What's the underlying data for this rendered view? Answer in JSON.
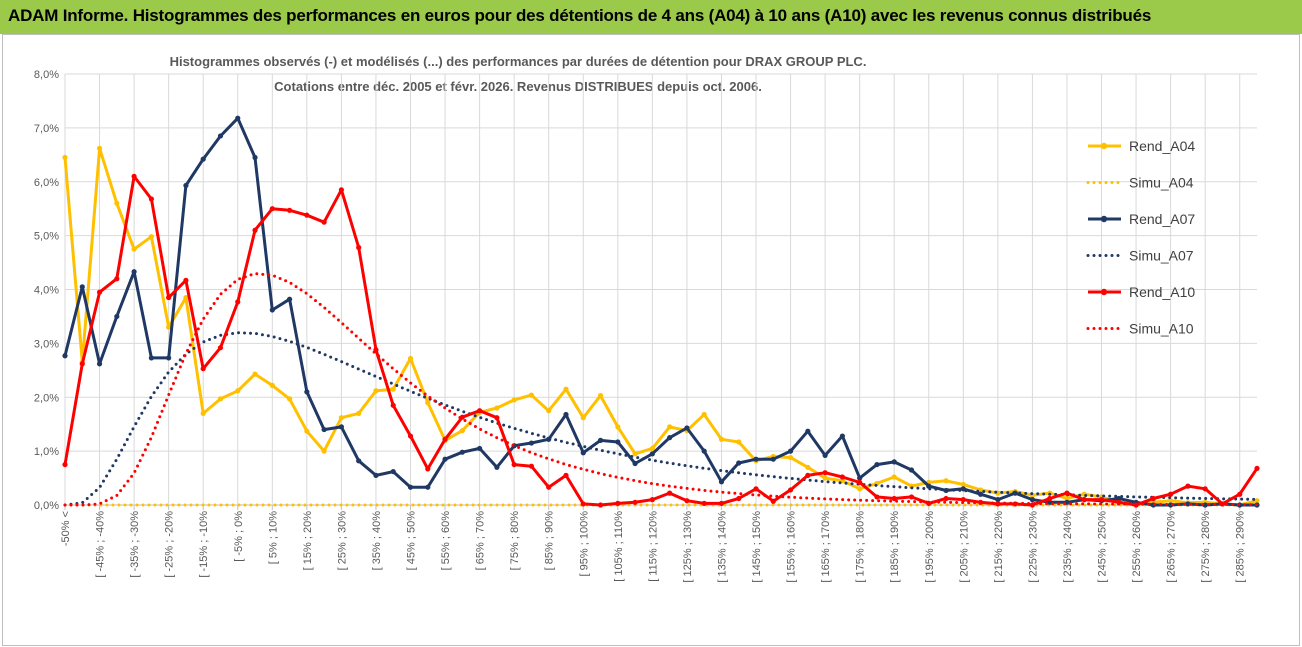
{
  "banner": {
    "title": "ADAM Informe. Histogrammes des performances en euros pour des détentions de 4 ans (A04) à 10 ans (A10) avec les revenus connus distribués"
  },
  "colors": {
    "banner_bg": "#9BC94A",
    "A04": "#FFC000",
    "A07": "#1F3864",
    "A10": "#FF0000",
    "grid": "#d9d9d9",
    "text": "#595959"
  },
  "chart_data": {
    "type": "line",
    "title": "Histogrammes observés (-)  et modélisés (...) des performances par durées de détention pour DRAX GROUP PLC.",
    "subtitle": "Cotations entre déc. 2005 et févr. 2026. Revenus DISTRIBUES depuis oct. 2006.",
    "xlabel": "",
    "ylabel": "",
    "ylim": [
      0,
      8
    ],
    "y_ticks": [
      "0,0%",
      "1,0%",
      "2,0%",
      "3,0%",
      "4,0%",
      "5,0%",
      "6,0%",
      "7,0%",
      "8,0%"
    ],
    "x_tick_labels": [
      "-50% <",
      "[ -45% ; -40%",
      "[ -35% ; -30%",
      "[ -25% ; -20%",
      "[ -15% ; -10%",
      "[ -5% ; 0%",
      "[ 5% ; 10%",
      "[ 15% ; 20%",
      "[ 25% ; 30%",
      "[ 35% ; 40%",
      "[ 45% ; 50%",
      "[ 55% ; 60%",
      "[ 65% ; 70%",
      "[ 75% ; 80%",
      "[ 85% ; 90%",
      "[ 95% ; 100%",
      "[ 105% ; 110%",
      "[ 115% ; 120%",
      "[ 125% ; 130%",
      "[ 135% ; 140%",
      "[ 145% ; 150%",
      "[ 155% ; 160%",
      "[ 165% ; 170%",
      "[ 175% ; 180%",
      "[ 185% ; 190%",
      "[ 195% ; 200%",
      "[ 205% ; 210%",
      "[ 215% ; 220%",
      "[ 225% ; 230%",
      "[ 235% ; 240%",
      "[ 245% ; 250%",
      "[ 255% ; 260%",
      "[ 265% ; 270%",
      "[ 275% ; 280%",
      "[ 285% ; 290%"
    ],
    "n_points": 70,
    "legend_position": "right",
    "series": [
      {
        "name": "Rend_A04",
        "key": "A04",
        "style": "solid",
        "markers": true,
        "values": [
          6.45,
          2.65,
          6.62,
          5.6,
          4.75,
          4.98,
          3.3,
          3.85,
          1.7,
          1.97,
          2.12,
          2.43,
          2.22,
          1.97,
          1.37,
          1.0,
          1.62,
          1.7,
          2.12,
          2.15,
          2.72,
          1.9,
          1.2,
          1.38,
          1.72,
          1.8,
          1.95,
          2.04,
          1.75,
          2.15,
          1.62,
          2.03,
          1.45,
          0.95,
          1.05,
          1.45,
          1.38,
          1.68,
          1.22,
          1.17,
          0.82,
          0.9,
          0.88,
          0.7,
          0.5,
          0.45,
          0.3,
          0.4,
          0.52,
          0.35,
          0.42,
          0.45,
          0.38,
          0.28,
          0.22,
          0.25,
          0.18,
          0.22,
          0.12,
          0.2,
          0.15,
          0.05,
          0.02,
          0.05,
          0.08,
          0.04,
          0.05,
          0.02,
          0.0,
          0.08
        ]
      },
      {
        "name": "Simu_A04",
        "key": "A04",
        "style": "dotted",
        "markers": false,
        "constant": 0.0
      },
      {
        "name": "Rend_A07",
        "key": "A07",
        "style": "solid",
        "markers": true,
        "values": [
          2.77,
          4.05,
          2.62,
          3.5,
          4.33,
          2.73,
          2.73,
          5.93,
          6.42,
          6.85,
          7.18,
          6.45,
          3.62,
          3.82,
          2.1,
          1.4,
          1.45,
          0.82,
          0.55,
          0.62,
          0.33,
          0.33,
          0.85,
          0.98,
          1.05,
          0.7,
          1.1,
          1.15,
          1.22,
          1.68,
          0.97,
          1.2,
          1.17,
          0.77,
          0.95,
          1.25,
          1.43,
          1.0,
          0.43,
          0.78,
          0.85,
          0.85,
          1.0,
          1.37,
          0.92,
          1.28,
          0.5,
          0.75,
          0.8,
          0.65,
          0.35,
          0.27,
          0.3,
          0.2,
          0.1,
          0.22,
          0.1,
          0.05,
          0.05,
          0.1,
          0.08,
          0.12,
          0.05,
          0.0,
          0.0,
          0.02,
          0.0,
          0.02,
          0.0,
          0.0
        ]
      },
      {
        "name": "Simu_A07",
        "type": "lognormal",
        "key": "A07",
        "style": "dotted",
        "markers": false,
        "amp": 3.2,
        "mode_idx": 10.5,
        "sigma": 0.72
      },
      {
        "name": "Rend_A10",
        "key": "A10",
        "style": "solid",
        "markers": true,
        "values": [
          0.75,
          2.62,
          3.95,
          4.2,
          6.1,
          5.68,
          3.85,
          4.17,
          2.53,
          2.92,
          3.77,
          5.1,
          5.5,
          5.47,
          5.38,
          5.25,
          5.85,
          4.78,
          2.88,
          1.85,
          1.28,
          0.67,
          1.22,
          1.63,
          1.75,
          1.62,
          0.75,
          0.72,
          0.33,
          0.55,
          0.02,
          0.0,
          0.03,
          0.05,
          0.1,
          0.22,
          0.08,
          0.03,
          0.03,
          0.12,
          0.3,
          0.07,
          0.28,
          0.55,
          0.6,
          0.52,
          0.42,
          0.15,
          0.12,
          0.15,
          0.03,
          0.12,
          0.1,
          0.05,
          0.02,
          0.02,
          0.0,
          0.12,
          0.22,
          0.1,
          0.1,
          0.05,
          0.0,
          0.12,
          0.2,
          0.35,
          0.3,
          0.02,
          0.2,
          0.68
        ]
      },
      {
        "name": "Simu_A10",
        "type": "lognormal",
        "key": "A10",
        "style": "dotted",
        "markers": false,
        "amp": 4.3,
        "mode_idx": 11.5,
        "sigma": 0.5
      }
    ]
  }
}
